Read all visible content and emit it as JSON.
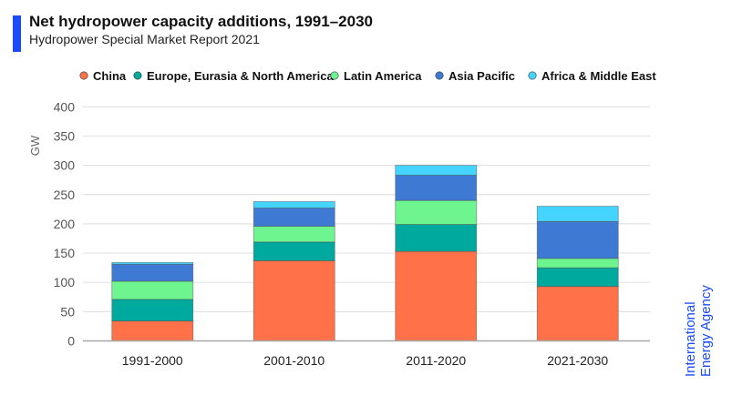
{
  "header": {
    "title": "Net hydropower capacity additions, 1991–2030",
    "subtitle": "Hydropower Special Market Report 2021",
    "accent_color": "#1a4bff"
  },
  "logo": {
    "line1": "International",
    "line2": "Energy Agency",
    "color": "#1a4bff"
  },
  "chart_data": {
    "type": "bar",
    "stacked": true,
    "title": "Net hydropower capacity additions, 1991–2030",
    "subtitle": "Hydropower Special Market Report 2021",
    "xlabel": "",
    "ylabel": "GW",
    "ylim": [
      0,
      400
    ],
    "yticks": [
      0,
      50,
      100,
      150,
      200,
      250,
      300,
      350,
      400
    ],
    "grid": true,
    "legend_position": "top",
    "categories": [
      "1991-2000",
      "2001-2010",
      "2011-2020",
      "2021-2030"
    ],
    "series": [
      {
        "name": "China",
        "color": "#ff7148",
        "values": [
          34,
          137,
          153,
          93
        ]
      },
      {
        "name": "Europe, Eurasia & North America",
        "color": "#00a99d",
        "values": [
          37,
          32,
          46,
          32
        ]
      },
      {
        "name": "Latin America",
        "color": "#6ff58f",
        "values": [
          31,
          27,
          41,
          16
        ]
      },
      {
        "name": "Asia Pacific",
        "color": "#3e7ad3",
        "values": [
          29,
          31,
          43,
          63
        ]
      },
      {
        "name": "Africa & Middle East",
        "color": "#45d4ff",
        "values": [
          3,
          11,
          17,
          26
        ]
      }
    ]
  }
}
